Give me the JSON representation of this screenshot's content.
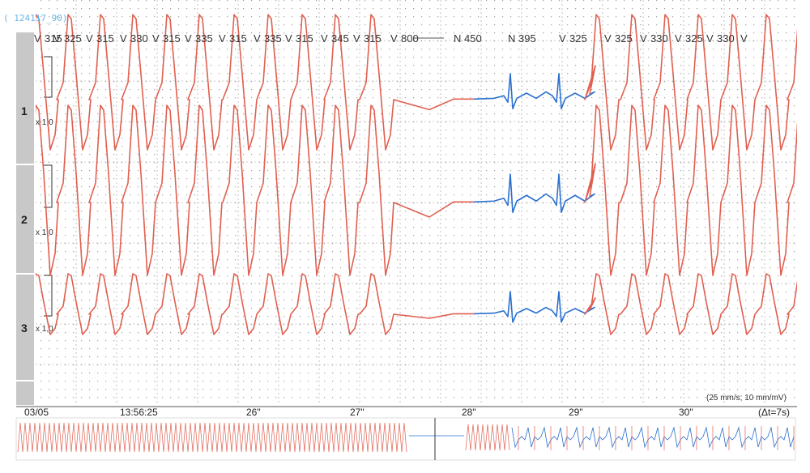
{
  "record_id": "( 124117_90)",
  "date": "03/05",
  "time_labels": [
    "13:56:25",
    "26\"",
    "27\"",
    "28\"",
    "29\"",
    "30\""
  ],
  "scale_label": "(25 mm/s; 10 mm/mV)",
  "window_label": "(Δt=7s)",
  "lead_labels": [
    "1",
    "2",
    "3"
  ],
  "gain_labels": [
    "x 1,0",
    "x 1,0",
    "x 1,0"
  ],
  "beat_annotations": [
    {
      "type": "V",
      "rr": "315"
    },
    {
      "type": "V",
      "rr": "325"
    },
    {
      "type": "V",
      "rr": "315"
    },
    {
      "type": "V",
      "rr": "330"
    },
    {
      "type": "V",
      "rr": "315"
    },
    {
      "type": "V",
      "rr": "335"
    },
    {
      "type": "V",
      "rr": "315"
    },
    {
      "type": "V",
      "rr": "335"
    },
    {
      "type": "V",
      "rr": "315"
    },
    {
      "type": "V",
      "rr": "345"
    },
    {
      "type": "V",
      "rr": "315"
    },
    {
      "type": "V",
      "rr": "800"
    },
    {
      "type": "N",
      "rr": "450"
    },
    {
      "type": "N",
      "rr": "395"
    },
    {
      "type": "V",
      "rr": "325"
    },
    {
      "type": "V",
      "rr": "325"
    },
    {
      "type": "V",
      "rr": "330"
    },
    {
      "type": "V",
      "rr": "325"
    },
    {
      "type": "V",
      "rr": "330"
    },
    {
      "type": "V",
      "rr": ""
    }
  ],
  "colors": {
    "ventricular": "#e06050",
    "normal": "#2a6fd0",
    "grid": "#9a9a9a",
    "sidebar": "#c8c8c8"
  }
}
